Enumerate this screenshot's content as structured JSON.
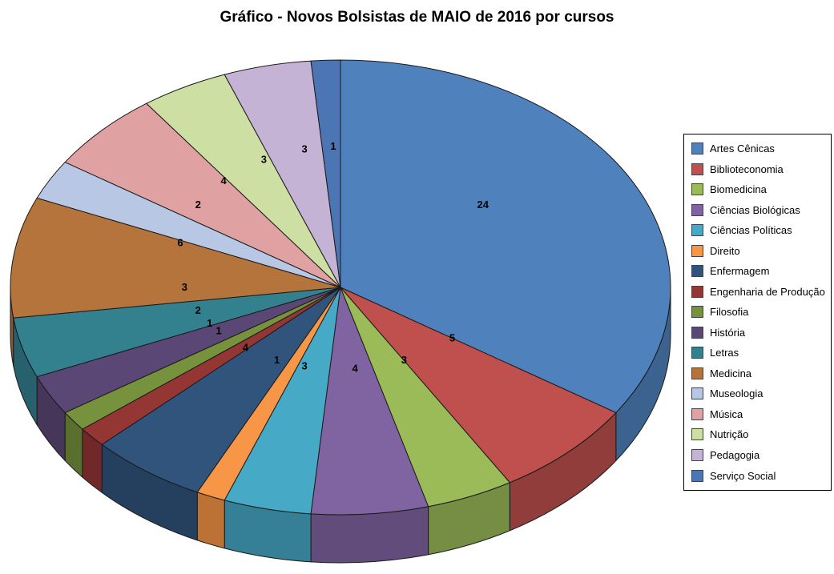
{
  "chart_data": {
    "type": "pie",
    "style": "3d",
    "title": "Gráfico - Novos Bolsistas de MAIO de 2016 por cursos",
    "legend_position": "right",
    "data_labels": "value",
    "total": 70,
    "background_color": "#FFFFFF",
    "outline_color": "#1A1A1A",
    "text_color": "#000000",
    "categories": [
      "Artes Cênicas",
      "Biblioteconomia",
      "Biomedicina",
      "Ciências Biológicas",
      "Ciências Políticas",
      "Direito",
      "Enfermagem",
      "Engenharia de Produção",
      "Filosofia",
      "História",
      "Letras",
      "Medicina",
      "Museologia",
      "Música",
      "Nutrição",
      "Pedagogia",
      "Serviço Social"
    ],
    "values": [
      24,
      5,
      3,
      4,
      3,
      1,
      4,
      1,
      1,
      2,
      3,
      6,
      2,
      4,
      3,
      3,
      1
    ],
    "colors": [
      "#4F81BD",
      "#BF504D",
      "#9BBB59",
      "#8064A2",
      "#46A9C6",
      "#F79646",
      "#31547D",
      "#943634",
      "#76923D",
      "#5B4776",
      "#33808F",
      "#B5743C",
      "#B7C7E4",
      "#E0A1A3",
      "#CDDFA3",
      "#C5B3D6",
      "#4B76B3"
    ]
  }
}
